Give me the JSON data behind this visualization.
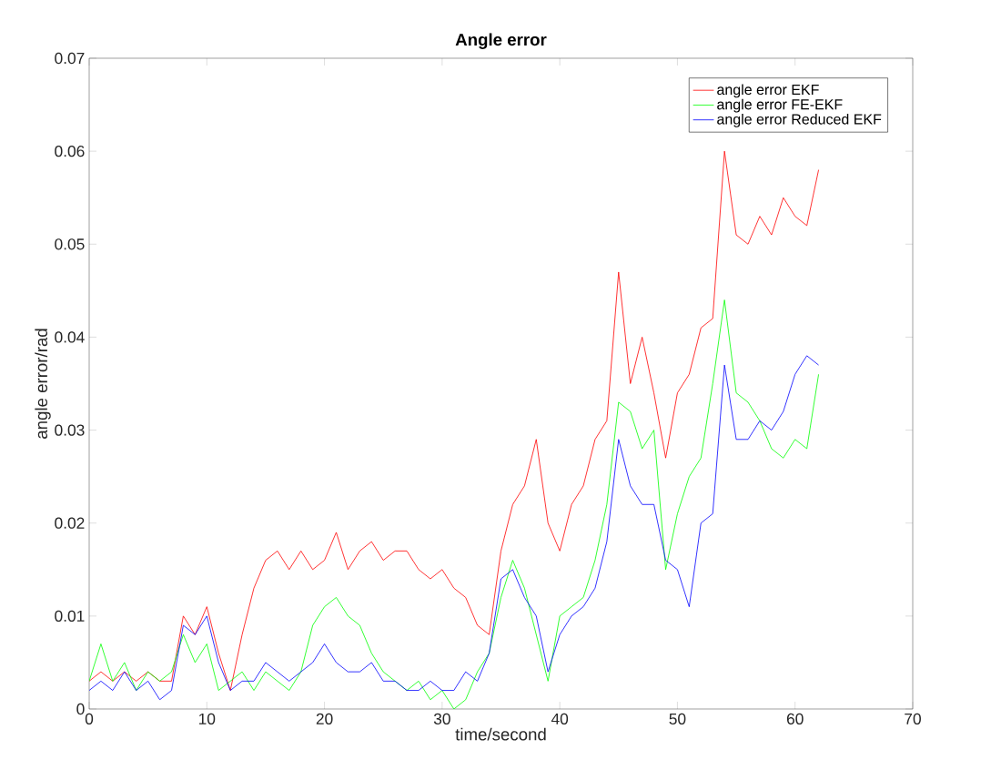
{
  "chart_data": {
    "type": "line",
    "title": "Angle error",
    "xlabel": "time/second",
    "ylabel": "angle error/rad",
    "x": [
      0,
      1,
      2,
      3,
      4,
      5,
      6,
      7,
      8,
      9,
      10,
      11,
      12,
      13,
      14,
      15,
      16,
      17,
      18,
      19,
      20,
      21,
      22,
      23,
      24,
      25,
      26,
      27,
      28,
      29,
      30,
      31,
      32,
      33,
      34,
      35,
      36,
      37,
      38,
      39,
      40,
      41,
      42,
      43,
      44,
      45,
      46,
      47,
      48,
      49,
      50,
      51,
      52,
      53,
      54,
      55,
      56,
      57,
      58,
      59,
      60,
      61,
      62
    ],
    "series": [
      {
        "name": "angle error EKF",
        "color": "#ff0000",
        "values": [
          0.003,
          0.004,
          0.003,
          0.004,
          0.003,
          0.004,
          0.003,
          0.003,
          0.01,
          0.008,
          0.011,
          0.006,
          0.002,
          0.008,
          0.013,
          0.016,
          0.017,
          0.015,
          0.017,
          0.015,
          0.016,
          0.019,
          0.015,
          0.017,
          0.018,
          0.016,
          0.017,
          0.017,
          0.015,
          0.014,
          0.015,
          0.013,
          0.012,
          0.009,
          0.008,
          0.017,
          0.022,
          0.024,
          0.029,
          0.02,
          0.017,
          0.022,
          0.024,
          0.029,
          0.031,
          0.047,
          0.035,
          0.04,
          0.034,
          0.027,
          0.034,
          0.036,
          0.041,
          0.042,
          0.06,
          0.051,
          0.05,
          0.053,
          0.051,
          0.055,
          0.053,
          0.052,
          0.058
        ]
      },
      {
        "name": "angle error FE-EKF",
        "color": "#00ff00",
        "values": [
          0.003,
          0.007,
          0.003,
          0.005,
          0.002,
          0.004,
          0.003,
          0.004,
          0.008,
          0.005,
          0.007,
          0.002,
          0.003,
          0.004,
          0.002,
          0.004,
          0.003,
          0.002,
          0.004,
          0.009,
          0.011,
          0.012,
          0.01,
          0.009,
          0.006,
          0.004,
          0.003,
          0.002,
          0.003,
          0.001,
          0.002,
          0.0,
          0.001,
          0.004,
          0.006,
          0.012,
          0.016,
          0.013,
          0.008,
          0.003,
          0.01,
          0.011,
          0.012,
          0.016,
          0.022,
          0.033,
          0.032,
          0.028,
          0.03,
          0.015,
          0.021,
          0.025,
          0.027,
          0.035,
          0.044,
          0.034,
          0.033,
          0.031,
          0.028,
          0.027,
          0.029,
          0.028,
          0.036
        ]
      },
      {
        "name": "angle error Reduced EKF",
        "color": "#0000ff",
        "values": [
          0.002,
          0.003,
          0.002,
          0.004,
          0.002,
          0.003,
          0.001,
          0.002,
          0.009,
          0.008,
          0.01,
          0.005,
          0.002,
          0.003,
          0.003,
          0.005,
          0.004,
          0.003,
          0.004,
          0.005,
          0.007,
          0.005,
          0.004,
          0.004,
          0.005,
          0.003,
          0.003,
          0.002,
          0.002,
          0.003,
          0.002,
          0.002,
          0.004,
          0.003,
          0.006,
          0.014,
          0.015,
          0.012,
          0.01,
          0.004,
          0.008,
          0.01,
          0.011,
          0.013,
          0.018,
          0.029,
          0.024,
          0.022,
          0.022,
          0.016,
          0.015,
          0.011,
          0.02,
          0.021,
          0.037,
          0.029,
          0.029,
          0.031,
          0.03,
          0.032,
          0.036,
          0.038,
          0.037
        ]
      }
    ],
    "xlim": [
      0,
      70
    ],
    "ylim": [
      0,
      0.07
    ],
    "xticks": [
      0,
      10,
      20,
      30,
      40,
      50,
      60,
      70
    ],
    "yticks": [
      0,
      {
        "value": 0.01,
        "label": "0.01"
      },
      {
        "value": 0.02,
        "label": "0.02"
      },
      {
        "value": 0.03,
        "label": "0.03"
      },
      {
        "value": 0.04,
        "label": "0.04"
      },
      {
        "value": 0.05,
        "label": "0.05"
      },
      {
        "value": 0.06,
        "label": "0.06"
      },
      {
        "value": 0.07,
        "label": "0.07"
      }
    ],
    "grid": false,
    "legend": "top right",
    "marker": "none",
    "line_style": "solid"
  }
}
